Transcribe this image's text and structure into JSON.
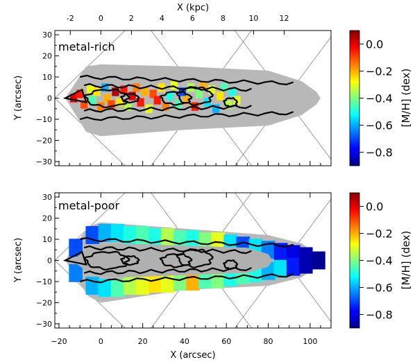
{
  "chart_data": {
    "type": "heatmap",
    "top_axis": {
      "label": "X (kpc)",
      "ticks": [
        -2,
        0,
        2,
        4,
        6,
        8,
        10,
        12
      ],
      "tick_labels": [
        "-2",
        "0",
        "2",
        "4",
        "6",
        "8",
        "10",
        "12"
      ]
    },
    "bottom_axis": {
      "label": "X (arcsec)",
      "ticks": [
        -20,
        0,
        20,
        40,
        60,
        80,
        100
      ],
      "tick_labels": [
        "−20",
        "0",
        "20",
        "40",
        "60",
        "80",
        "100"
      ],
      "xlim": [
        -22,
        110
      ]
    },
    "colormap": "jet",
    "panels": [
      {
        "label": "metal-rich",
        "ylabel": "Y (arcsec)",
        "ylim": [
          -32,
          32
        ],
        "yticks": [
          -30,
          -20,
          -10,
          0,
          10,
          20,
          30
        ],
        "ytick_labels": [
          "−30",
          "−20",
          "−10",
          "0",
          "10",
          "20",
          "30"
        ],
        "colorbar": {
          "label": "[M/H] (dex)",
          "range": [
            -0.9,
            0.1
          ],
          "ticks": [
            0.0,
            -0.2,
            -0.4,
            -0.6,
            -0.8
          ],
          "tick_labels": [
            "0.0",
            "−0.2",
            "−0.4",
            "−0.6",
            "−0.8"
          ]
        },
        "colored_bins": [
          {
            "x": -13,
            "y": 0,
            "v": 0.0
          },
          {
            "x": -10,
            "y": 2,
            "v": -0.05
          },
          {
            "x": -8,
            "y": -3,
            "v": -0.1
          },
          {
            "x": -5,
            "y": 4,
            "v": -0.3
          },
          {
            "x": -4,
            "y": -1,
            "v": -0.45
          },
          {
            "x": -2,
            "y": 3,
            "v": -0.25
          },
          {
            "x": 0,
            "y": -4,
            "v": -0.15
          },
          {
            "x": 2,
            "y": 5,
            "v": -0.6
          },
          {
            "x": 3,
            "y": 0,
            "v": -0.2
          },
          {
            "x": 5,
            "y": -3,
            "v": -0.1
          },
          {
            "x": 7,
            "y": 3,
            "v": 0.05
          },
          {
            "x": 9,
            "y": -2,
            "v": -0.25
          },
          {
            "x": 11,
            "y": 4,
            "v": -0.05
          },
          {
            "x": 13,
            "y": -4,
            "v": -0.35
          },
          {
            "x": 15,
            "y": 1,
            "v": 0.0
          },
          {
            "x": 17,
            "y": 5,
            "v": -0.15
          },
          {
            "x": 19,
            "y": -2,
            "v": -0.05
          },
          {
            "x": 21,
            "y": 3,
            "v": -0.2
          },
          {
            "x": 23,
            "y": -5,
            "v": -0.3
          },
          {
            "x": 25,
            "y": 2,
            "v": -0.1
          },
          {
            "x": 27,
            "y": -1,
            "v": -0.05
          },
          {
            "x": 29,
            "y": 5,
            "v": -0.25
          },
          {
            "x": 31,
            "y": -4,
            "v": -0.15
          },
          {
            "x": 33,
            "y": 1,
            "v": -0.5
          },
          {
            "x": 35,
            "y": 6,
            "v": -0.3
          },
          {
            "x": 37,
            "y": -3,
            "v": -0.45
          },
          {
            "x": 39,
            "y": 3,
            "v": -0.7
          },
          {
            "x": 41,
            "y": -1,
            "v": -0.2
          },
          {
            "x": 43,
            "y": 5,
            "v": -0.35
          },
          {
            "x": 45,
            "y": -4,
            "v": -0.05
          },
          {
            "x": 47,
            "y": 2,
            "v": -0.4
          },
          {
            "x": 49,
            "y": 6,
            "v": -0.2
          },
          {
            "x": 51,
            "y": -2,
            "v": -0.55
          },
          {
            "x": 53,
            "y": 4,
            "v": -0.3
          },
          {
            "x": 55,
            "y": -5,
            "v": -0.6
          },
          {
            "x": 57,
            "y": 1,
            "v": -0.25
          },
          {
            "x": 59,
            "y": 5,
            "v": -0.45
          },
          {
            "x": 61,
            "y": -3,
            "v": -0.35
          },
          {
            "x": 63,
            "y": 3,
            "v": -0.5
          },
          {
            "x": 65,
            "y": -1,
            "v": -0.3
          }
        ]
      },
      {
        "label": "metal-poor",
        "ylabel": "Y (arcsec)",
        "ylim": [
          -32,
          32
        ],
        "yticks": [
          -30,
          -20,
          -10,
          0,
          10,
          20,
          30
        ],
        "ytick_labels": [
          "−30",
          "−20",
          "−10",
          "0",
          "10",
          "20",
          "30"
        ],
        "colorbar": {
          "label": "[M/H] (dex)",
          "range": [
            -0.9,
            0.1
          ],
          "ticks": [
            0.0,
            -0.2,
            -0.4,
            -0.6,
            -0.8
          ],
          "tick_labels": [
            "0.0",
            "−0.2",
            "−0.4",
            "−0.6",
            "−0.8"
          ]
        },
        "colored_bins": [
          {
            "x": -12,
            "y": 6,
            "v": -0.7
          },
          {
            "x": -12,
            "y": -6,
            "v": -0.65
          },
          {
            "x": -4,
            "y": 12,
            "v": -0.7
          },
          {
            "x": -4,
            "y": -12,
            "v": -0.6
          },
          {
            "x": 2,
            "y": 13,
            "v": -0.6
          },
          {
            "x": 2,
            "y": -13,
            "v": -0.55
          },
          {
            "x": 8,
            "y": 13,
            "v": -0.55
          },
          {
            "x": 8,
            "y": -13,
            "v": -0.45
          },
          {
            "x": 14,
            "y": 12,
            "v": -0.5
          },
          {
            "x": 14,
            "y": -12,
            "v": -0.35
          },
          {
            "x": 20,
            "y": 12,
            "v": -0.45
          },
          {
            "x": 20,
            "y": -12,
            "v": -0.3
          },
          {
            "x": 26,
            "y": 11,
            "v": -0.5
          },
          {
            "x": 26,
            "y": -11,
            "v": -0.25
          },
          {
            "x": 32,
            "y": 11,
            "v": -0.35
          },
          {
            "x": 32,
            "y": -11,
            "v": -0.3
          },
          {
            "x": 38,
            "y": 10,
            "v": -0.45
          },
          {
            "x": 38,
            "y": -10,
            "v": -0.4
          },
          {
            "x": 44,
            "y": 10,
            "v": -0.5
          },
          {
            "x": 44,
            "y": -10,
            "v": -0.2
          },
          {
            "x": 50,
            "y": 9,
            "v": -0.4
          },
          {
            "x": 50,
            "y": -9,
            "v": -0.45
          },
          {
            "x": 56,
            "y": 9,
            "v": -0.3
          },
          {
            "x": 56,
            "y": -9,
            "v": -0.4
          },
          {
            "x": 62,
            "y": 8,
            "v": -0.55
          },
          {
            "x": 62,
            "y": -8,
            "v": -0.5
          },
          {
            "x": 68,
            "y": 7,
            "v": -0.7
          },
          {
            "x": 68,
            "y": -7,
            "v": -0.45
          },
          {
            "x": 74,
            "y": 6,
            "v": -0.55
          },
          {
            "x": 74,
            "y": -6,
            "v": -0.5
          },
          {
            "x": 80,
            "y": 5,
            "v": -0.65
          },
          {
            "x": 80,
            "y": -5,
            "v": -0.6
          },
          {
            "x": 86,
            "y": 4,
            "v": -0.75
          },
          {
            "x": 86,
            "y": -4,
            "v": -0.55
          },
          {
            "x": 92,
            "y": 3,
            "v": -0.8
          },
          {
            "x": 92,
            "y": -3,
            "v": -0.75
          },
          {
            "x": 98,
            "y": 2,
            "v": -0.85
          },
          {
            "x": 98,
            "y": -2,
            "v": -0.85
          },
          {
            "x": 104,
            "y": 0,
            "v": -0.88
          }
        ]
      }
    ]
  }
}
